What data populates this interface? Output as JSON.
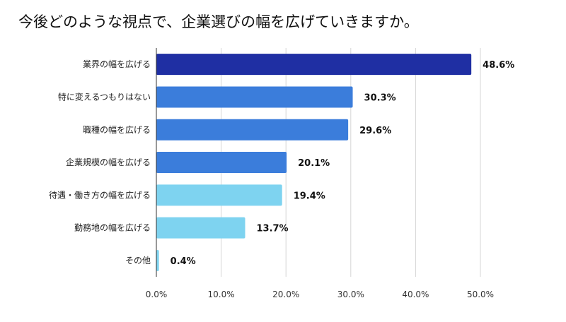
{
  "chart_data": {
    "type": "bar",
    "orientation": "horizontal",
    "title": "今後どのような視点で、企業選びの幅を広げていきますか。",
    "categories": [
      "業界の幅を広げる",
      "特に変えるつもりはない",
      "職種の幅を広げる",
      "企業規模の幅を広げる",
      "待遇・働き方の幅を広げる",
      "勤務地の幅を広げる",
      "その他"
    ],
    "values": [
      48.6,
      30.3,
      29.6,
      20.1,
      19.4,
      13.7,
      0.4
    ],
    "data_labels": [
      "48.6%",
      "30.3%",
      "29.6%",
      "20.1%",
      "19.4%",
      "13.7%",
      "0.4%"
    ],
    "bar_colors": [
      "#1F2FA3",
      "#3B7DDB",
      "#3B7DDB",
      "#3B7DDB",
      "#7ED3F0",
      "#7ED3F0",
      "#7ED3F0"
    ],
    "x_ticks": [
      0,
      10,
      20,
      30,
      40,
      50
    ],
    "x_tick_labels": [
      "0.0%",
      "10.0%",
      "20.0%",
      "30.0%",
      "40.0%",
      "50.0%"
    ],
    "xlim": [
      0,
      50
    ],
    "grid": true,
    "legend": "none"
  }
}
